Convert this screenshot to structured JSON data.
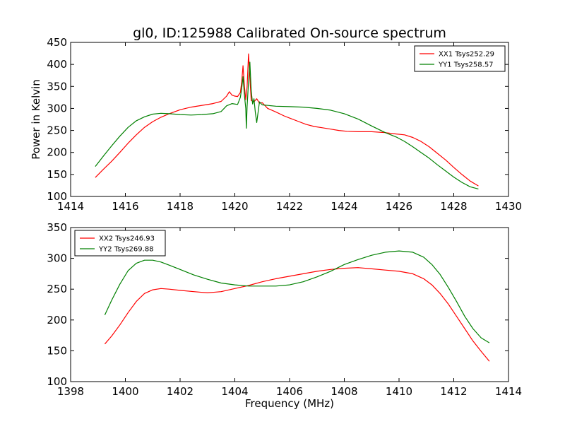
{
  "figure": {
    "title": "gl0, ID:125988 Calibrated On-source spectrum",
    "xlabel": "Frequency (MHz)"
  },
  "colors": {
    "red": "#ff0000",
    "green": "#008000",
    "axes": "#000000"
  },
  "chart_data": [
    {
      "type": "line",
      "title": "gl0, ID:125988 Calibrated On-source spectrum",
      "xlabel": "",
      "ylabel": "Power in Kelvin",
      "xlim": [
        1414,
        1430
      ],
      "ylim": [
        100,
        450
      ],
      "xticks": [
        1414,
        1416,
        1418,
        1420,
        1422,
        1424,
        1426,
        1428,
        1430
      ],
      "yticks": [
        100,
        150,
        200,
        250,
        300,
        350,
        400,
        450
      ],
      "grid": false,
      "legend": "top-right",
      "series": [
        {
          "name": "XX1 Tsys252.29",
          "color": "#ff0000",
          "x": [
            1414.9,
            1415.2,
            1415.5,
            1415.8,
            1416.1,
            1416.4,
            1416.7,
            1417.0,
            1417.3,
            1417.6,
            1418.0,
            1418.4,
            1418.8,
            1419.2,
            1419.5,
            1419.7,
            1419.8,
            1419.9,
            1420.0,
            1420.1,
            1420.2,
            1420.25,
            1420.3,
            1420.35,
            1420.4,
            1420.45,
            1420.5,
            1420.55,
            1420.6,
            1420.7,
            1420.8,
            1420.9,
            1421.0,
            1421.2,
            1421.5,
            1421.8,
            1422.0,
            1422.3,
            1422.6,
            1422.9,
            1423.2,
            1423.5,
            1423.8,
            1424.1,
            1424.5,
            1425.0,
            1425.5,
            1425.9,
            1426.2,
            1426.5,
            1426.8,
            1427.1,
            1427.4,
            1427.7,
            1428.0,
            1428.3,
            1428.6,
            1428.9
          ],
          "values": [
            143,
            162,
            180,
            200,
            221,
            240,
            257,
            270,
            280,
            288,
            297,
            303,
            307,
            311,
            316,
            328,
            338,
            330,
            328,
            327,
            336,
            360,
            397,
            350,
            320,
            350,
            424,
            370,
            318,
            315,
            322,
            312,
            313,
            300,
            292,
            283,
            278,
            271,
            264,
            259,
            256,
            253,
            250,
            248,
            247,
            247,
            245,
            242,
            240,
            234,
            225,
            213,
            198,
            183,
            166,
            150,
            135,
            124
          ]
        },
        {
          "name": "YY1 Tsys258.57",
          "color": "#008000",
          "x": [
            1414.9,
            1415.2,
            1415.5,
            1415.8,
            1416.1,
            1416.4,
            1416.7,
            1417.0,
            1417.3,
            1417.6,
            1418.0,
            1418.4,
            1418.8,
            1419.2,
            1419.5,
            1419.7,
            1419.9,
            1420.1,
            1420.2,
            1420.25,
            1420.3,
            1420.35,
            1420.4,
            1420.42,
            1420.45,
            1420.5,
            1420.55,
            1420.6,
            1420.65,
            1420.7,
            1420.75,
            1420.8,
            1420.9,
            1421.0,
            1421.5,
            1422.0,
            1422.5,
            1423.0,
            1423.5,
            1424.0,
            1424.5,
            1425.0,
            1425.5,
            1425.9,
            1426.2,
            1426.5,
            1426.8,
            1427.1,
            1427.4,
            1427.7,
            1428.0,
            1428.3,
            1428.6,
            1428.9
          ],
          "values": [
            168,
            192,
            215,
            237,
            257,
            272,
            281,
            287,
            289,
            288,
            286,
            285,
            286,
            288,
            293,
            306,
            311,
            309,
            325,
            345,
            372,
            330,
            300,
            255,
            305,
            360,
            405,
            340,
            310,
            322,
            290,
            268,
            315,
            308,
            305,
            304,
            303,
            300,
            296,
            288,
            276,
            260,
            245,
            235,
            225,
            213,
            200,
            187,
            172,
            158,
            144,
            132,
            122,
            117
          ]
        }
      ]
    },
    {
      "type": "line",
      "title": "",
      "xlabel": "Frequency (MHz)",
      "ylabel": "",
      "xlim": [
        1398,
        1414
      ],
      "ylim": [
        100,
        350
      ],
      "xticks": [
        1398,
        1400,
        1402,
        1404,
        1406,
        1408,
        1410,
        1412,
        1414
      ],
      "yticks": [
        100,
        150,
        200,
        250,
        300,
        350
      ],
      "grid": false,
      "legend": "top-left",
      "series": [
        {
          "name": "XX2 Tsys246.93",
          "color": "#ff0000",
          "x": [
            1399.25,
            1399.5,
            1399.8,
            1400.1,
            1400.4,
            1400.7,
            1401.0,
            1401.3,
            1401.6,
            1402.0,
            1402.5,
            1403.0,
            1403.5,
            1404.0,
            1404.5,
            1405.0,
            1405.5,
            1406.0,
            1406.5,
            1407.0,
            1407.5,
            1408.0,
            1408.5,
            1409.0,
            1409.5,
            1410.0,
            1410.5,
            1410.9,
            1411.2,
            1411.5,
            1411.8,
            1412.1,
            1412.4,
            1412.7,
            1413.0,
            1413.3
          ],
          "values": [
            161,
            174,
            192,
            212,
            230,
            243,
            249,
            251,
            250,
            248,
            246,
            244,
            246,
            251,
            256,
            262,
            267,
            271,
            275,
            279,
            282,
            284,
            285,
            283,
            281,
            279,
            275,
            267,
            257,
            243,
            226,
            206,
            186,
            166,
            149,
            133
          ]
        },
        {
          "name": "YY2 Tsys269.88",
          "color": "#008000",
          "x": [
            1399.25,
            1399.5,
            1399.8,
            1400.1,
            1400.4,
            1400.7,
            1401.0,
            1401.3,
            1401.6,
            1402.0,
            1402.5,
            1403.0,
            1403.5,
            1404.0,
            1404.5,
            1405.0,
            1405.5,
            1406.0,
            1406.5,
            1407.0,
            1407.5,
            1408.0,
            1408.5,
            1409.0,
            1409.5,
            1410.0,
            1410.5,
            1410.9,
            1411.2,
            1411.5,
            1411.8,
            1412.1,
            1412.4,
            1412.7,
            1413.0,
            1413.3
          ],
          "values": [
            208,
            232,
            258,
            280,
            292,
            297,
            297,
            294,
            289,
            282,
            273,
            266,
            260,
            257,
            255,
            255,
            255,
            257,
            262,
            270,
            279,
            290,
            298,
            305,
            310,
            312,
            310,
            302,
            290,
            274,
            253,
            230,
            206,
            186,
            171,
            163
          ]
        }
      ]
    }
  ]
}
